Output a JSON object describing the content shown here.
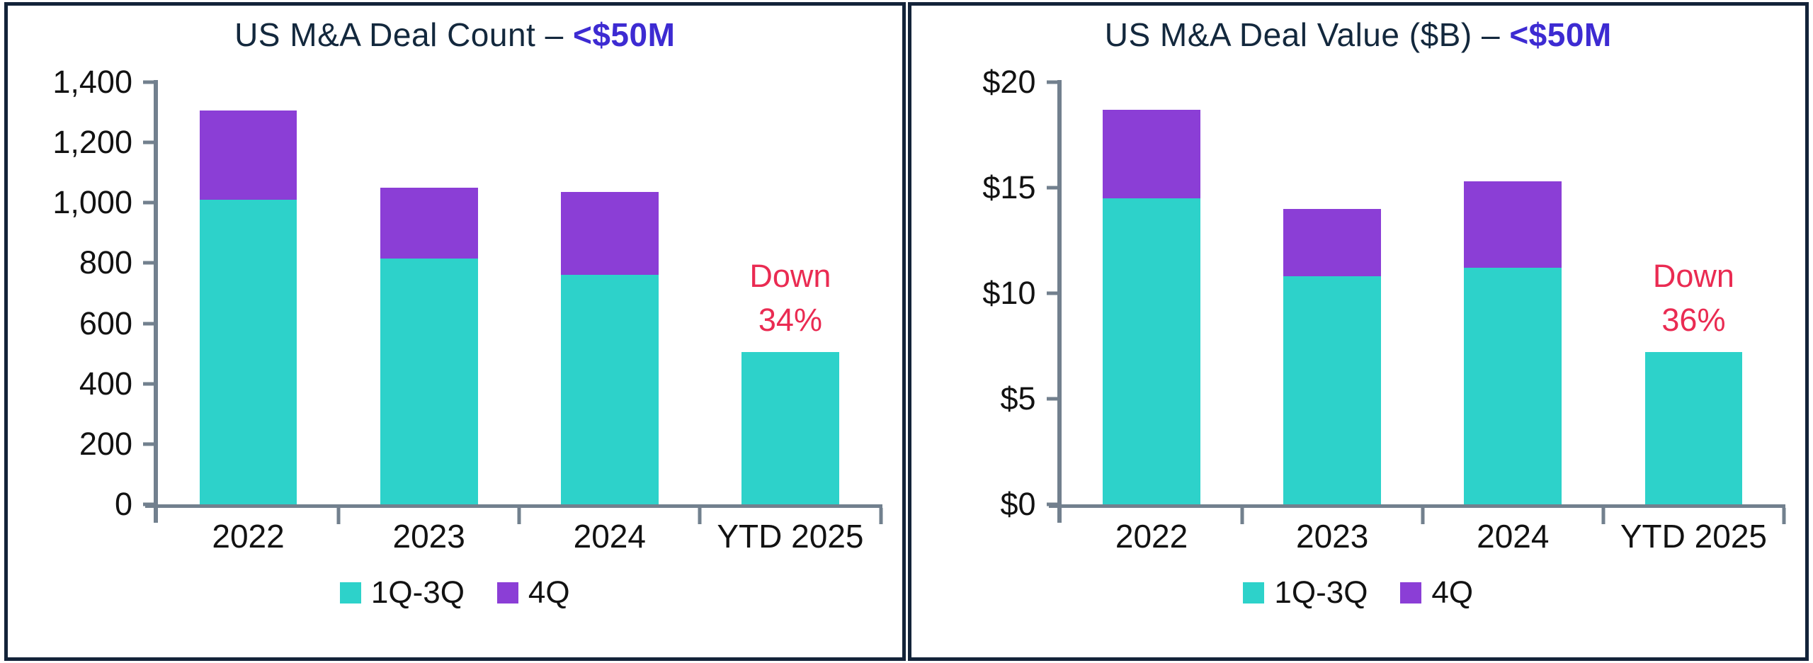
{
  "colors": {
    "teal": "#2dd2ca",
    "purple": "#8b3ed6",
    "accent_blue": "#3d2bd2",
    "title_navy": "#13283d",
    "annotation_red": "#ea2b52",
    "axis_gray": "#72808e",
    "text_black": "#121212",
    "border_navy": "#132339"
  },
  "chart_data": [
    {
      "type": "bar",
      "stacked": true,
      "title": "US M&A Deal Count – <$50M",
      "title_prefix": "US M&A Deal Count – ",
      "title_accent": "<$50M",
      "categories": [
        "2022",
        "2023",
        "2024",
        "YTD 2025"
      ],
      "series": [
        {
          "name": "1Q-3Q",
          "color": "#2dd2ca",
          "values": [
            1010,
            815,
            760,
            505
          ]
        },
        {
          "name": "4Q",
          "color": "#8b3ed6",
          "values": [
            295,
            235,
            275,
            0
          ]
        }
      ],
      "totals": [
        1305,
        1050,
        1035,
        505
      ],
      "ylim": [
        0,
        1400
      ],
      "ytick_step": 200,
      "yticks": [
        0,
        200,
        400,
        600,
        800,
        1000,
        1200,
        1400
      ],
      "ytick_labels": [
        "0",
        "200",
        "400",
        "600",
        "800",
        "1,000",
        "1,200",
        "1,400"
      ],
      "grid": false,
      "legend_position": "bottom",
      "legend": [
        "1Q-3Q",
        "4Q"
      ],
      "annotation": {
        "text": "Down 34%",
        "lines": [
          "Down",
          "34%"
        ],
        "category": "YTD 2025",
        "category_index": 3,
        "color": "#ea2b52"
      }
    },
    {
      "type": "bar",
      "stacked": true,
      "title": "US M&A Deal Value ($B) – <$50M",
      "title_prefix": "US M&A Deal Value ($B) – ",
      "title_accent": "<$50M",
      "categories": [
        "2022",
        "2023",
        "2024",
        "YTD 2025"
      ],
      "series": [
        {
          "name": "1Q-3Q",
          "color": "#2dd2ca",
          "values": [
            14.5,
            10.8,
            11.2,
            7.2
          ]
        },
        {
          "name": "4Q",
          "color": "#8b3ed6",
          "values": [
            4.2,
            3.2,
            4.1,
            0
          ]
        }
      ],
      "totals": [
        18.7,
        14.0,
        15.3,
        7.2
      ],
      "ylim": [
        0,
        20
      ],
      "ytick_step": 5,
      "yticks": [
        0,
        5,
        10,
        15,
        20
      ],
      "ytick_labels": [
        "$0",
        "$5",
        "$10",
        "$15",
        "$20"
      ],
      "grid": false,
      "legend_position": "bottom",
      "legend": [
        "1Q-3Q",
        "4Q"
      ],
      "annotation": {
        "text": "Down 36%",
        "lines": [
          "Down",
          "36%"
        ],
        "category": "YTD 2025",
        "category_index": 3,
        "color": "#ea2b52"
      }
    }
  ]
}
